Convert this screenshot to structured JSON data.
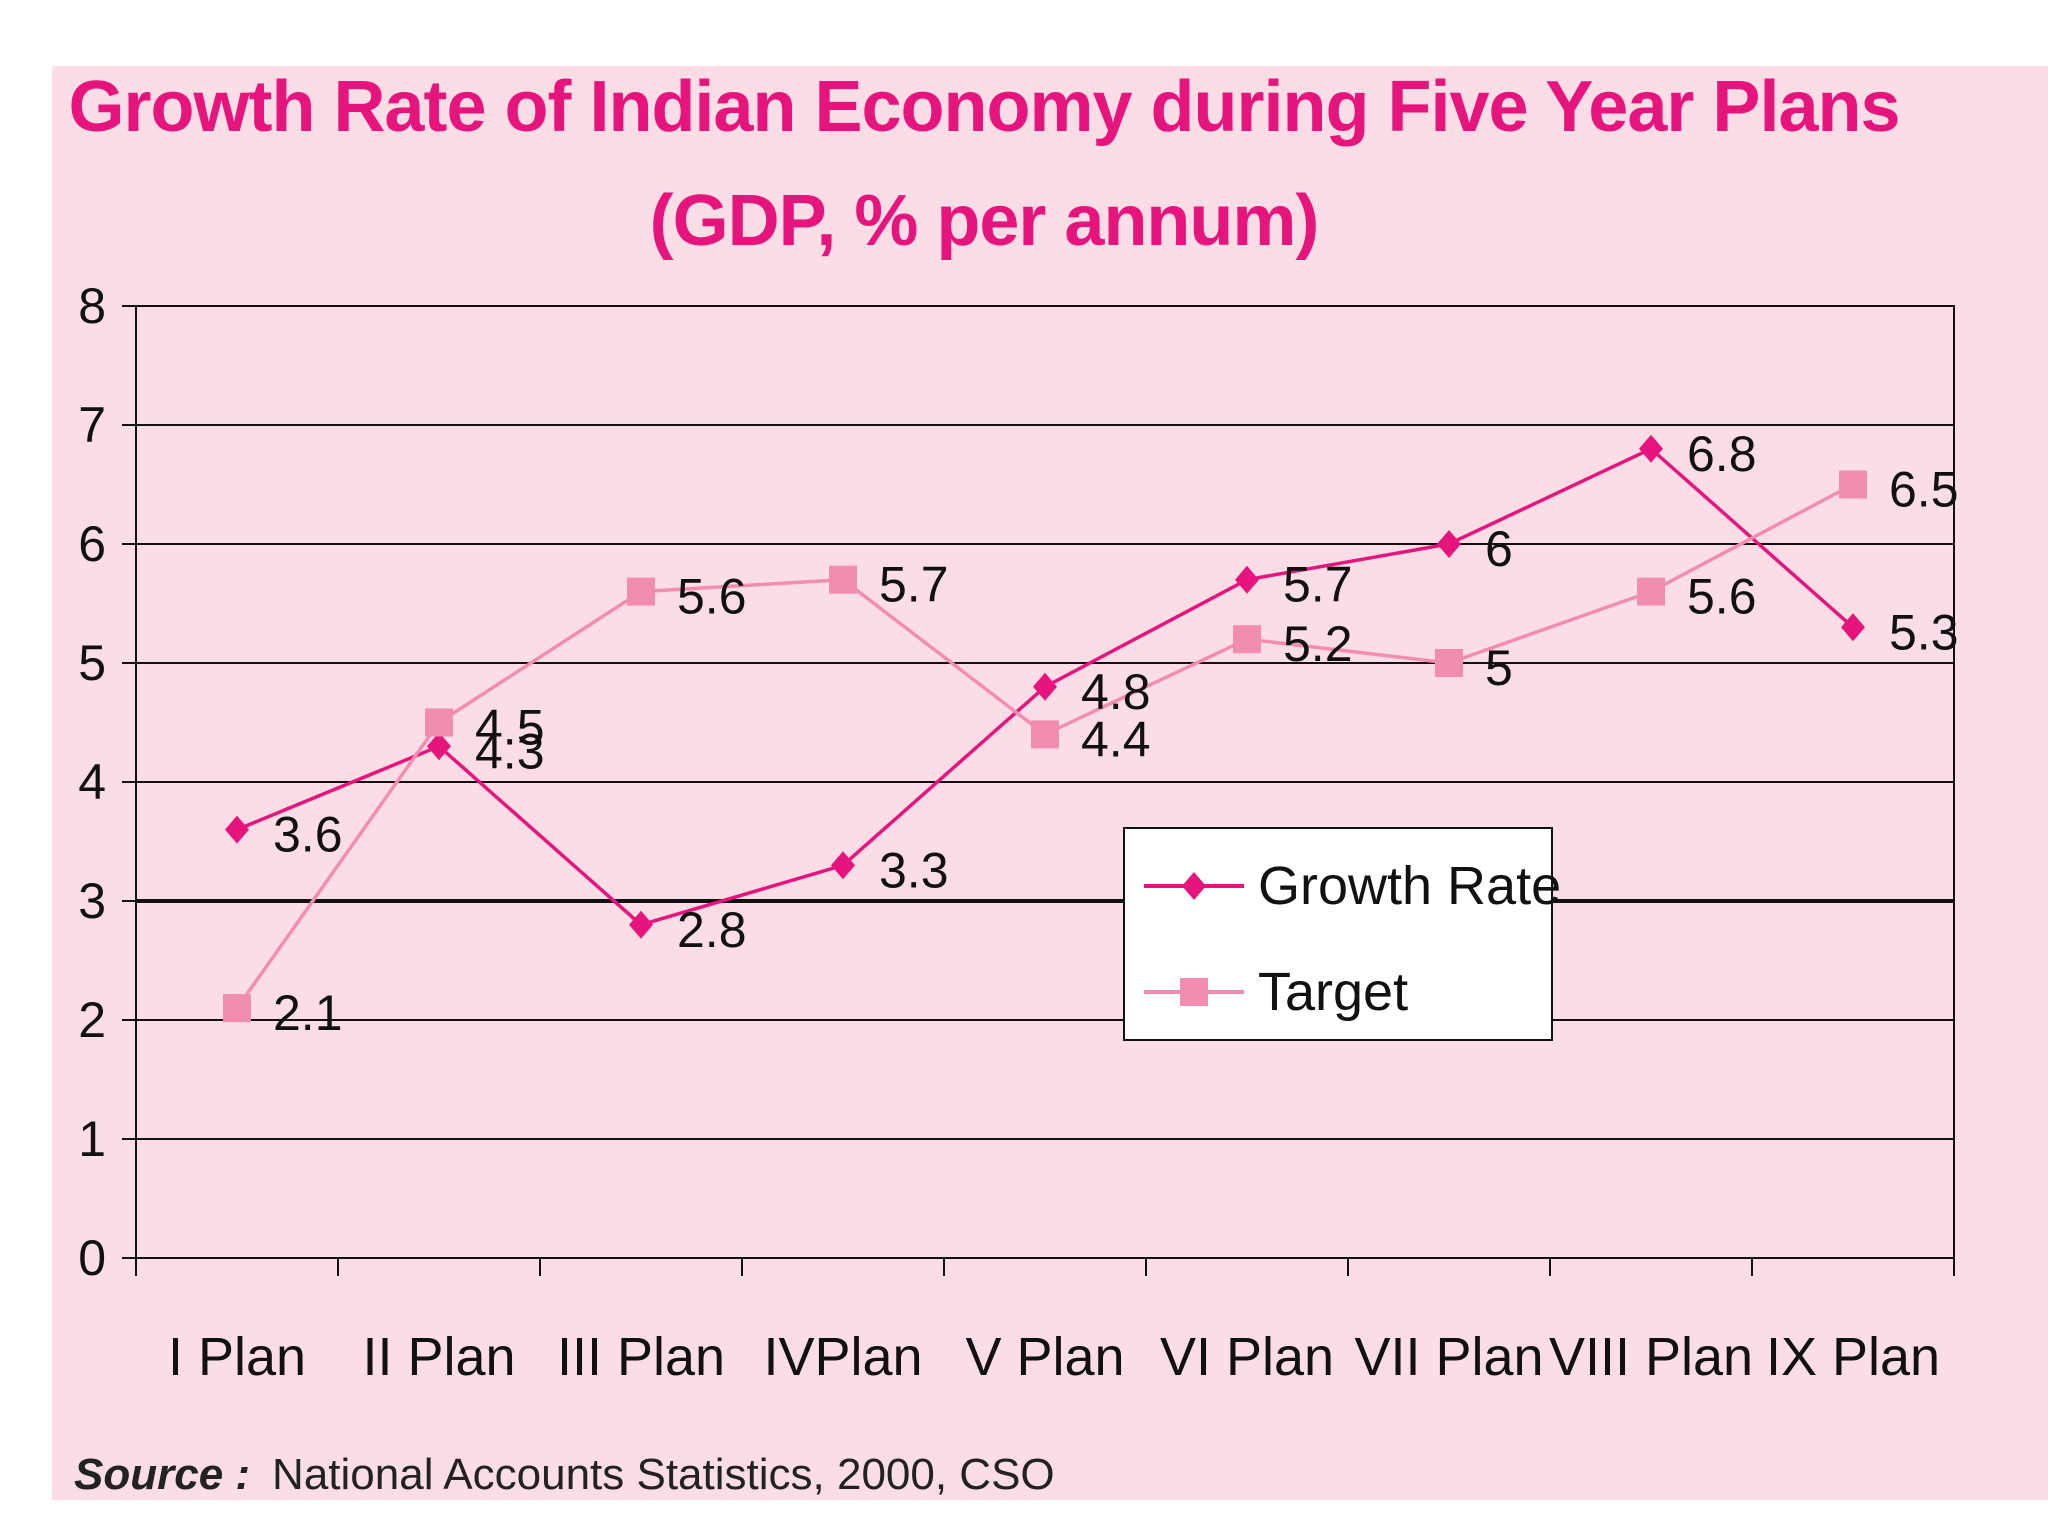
{
  "chart_data": {
    "type": "line",
    "title": "Growth Rate of Indian Economy during Five Year Plans",
    "subtitle": "(GDP, % per annum)",
    "categories": [
      "I Plan",
      "II Plan",
      "III Plan",
      "IVPlan",
      "V Plan",
      "VI Plan",
      "VII Plan",
      "VIII Plan",
      "IX Plan"
    ],
    "series": [
      {
        "name": "Growth Rate",
        "values": [
          3.6,
          4.3,
          2.8,
          3.3,
          4.8,
          5.7,
          6,
          6.8,
          5.3
        ],
        "color": "#e6157e",
        "marker": "diamond"
      },
      {
        "name": "Target",
        "values": [
          2.1,
          4.5,
          5.6,
          5.7,
          4.4,
          5.2,
          5,
          5.6,
          6.5
        ],
        "color": "#f28db0",
        "marker": "square"
      }
    ],
    "yticks": [
      "0",
      "1",
      "2",
      "3",
      "4",
      "5",
      "6",
      "7",
      "8"
    ],
    "ylim": [
      0,
      8
    ],
    "grid": true,
    "legend": "center-right"
  },
  "source": {
    "label": "Source :",
    "text": "National Accounts Statistics, 2000, CSO"
  }
}
